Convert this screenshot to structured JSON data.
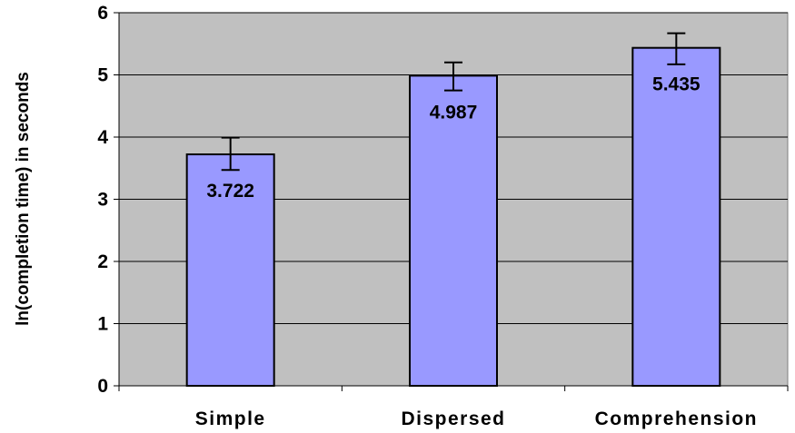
{
  "chart_data": {
    "type": "bar",
    "title": "",
    "xlabel": "",
    "ylabel": "ln(completion time) in seconds",
    "categories": [
      "Simple",
      "Dispersed",
      "Comprehension"
    ],
    "values": [
      3.722,
      4.987,
      5.435
    ],
    "data_labels": [
      "3.722",
      "4.987",
      "5.435"
    ],
    "error_bars": [
      {
        "low": 3.47,
        "high": 3.99
      },
      {
        "low": 4.75,
        "high": 5.2
      },
      {
        "low": 5.17,
        "high": 5.67
      }
    ],
    "ylim": [
      0,
      6
    ],
    "yticks": [
      "0",
      "1",
      "2",
      "3",
      "4",
      "5",
      "6"
    ],
    "grid": true,
    "legend": "none",
    "colors": {
      "plot_background": "#c0c0c0",
      "bar_fill": "#9999ff",
      "bar_stroke": "#000000",
      "gridline": "#000000"
    }
  }
}
